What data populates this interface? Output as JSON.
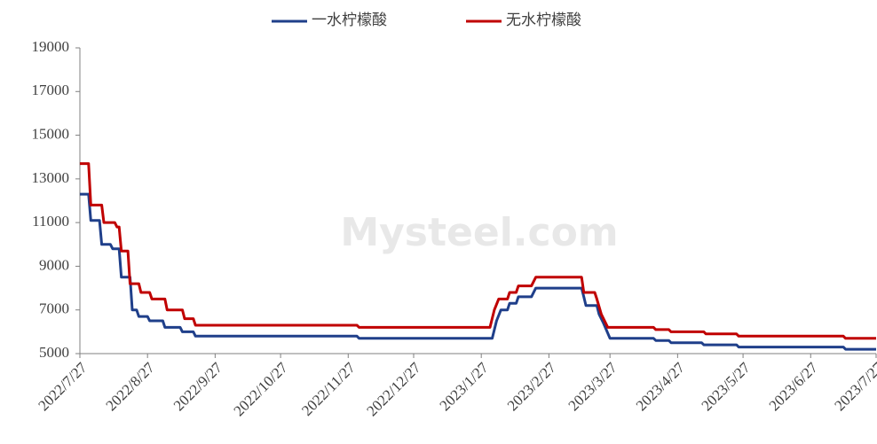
{
  "chart_data": {
    "type": "line",
    "watermark": "Mysteel.com",
    "xlim": [
      "2022/7/27",
      "2023/7/27"
    ],
    "xticks": [
      "2022/7/27",
      "2022/8/27",
      "2022/9/27",
      "2022/10/27",
      "2022/11/27",
      "2022/12/27",
      "2023/1/27",
      "2023/2/27",
      "2023/3/27",
      "2023/4/27",
      "2023/5/27",
      "2023/6/27",
      "2023/7/27"
    ],
    "ylim": [
      5000,
      19000
    ],
    "yticks": [
      5000,
      7000,
      9000,
      11000,
      13000,
      15000,
      17000,
      19000
    ],
    "grid": false,
    "legend": "top",
    "series": [
      {
        "name": "一水柠檬酸",
        "color": "#1f3f8a",
        "x": [
          "2022/7/27",
          "2022/7/31",
          "2022/8/1",
          "2022/8/5",
          "2022/8/6",
          "2022/8/10",
          "2022/8/11",
          "2022/8/14",
          "2022/8/15",
          "2022/8/19",
          "2022/8/20",
          "2022/8/22",
          "2022/8/23",
          "2022/8/27",
          "2022/8/28",
          "2022/9/3",
          "2022/9/4",
          "2022/9/11",
          "2022/9/12",
          "2022/9/17",
          "2022/9/18",
          "2022/12/1",
          "2022/12/2",
          "2023/2/1",
          "2023/2/3",
          "2023/2/5",
          "2023/2/8",
          "2023/2/9",
          "2023/2/12",
          "2023/2/13",
          "2023/2/19",
          "2023/2/21",
          "2023/3/14",
          "2023/3/15",
          "2023/3/16",
          "2023/3/21",
          "2023/3/22",
          "2023/3/24",
          "2023/3/27",
          "2023/4/16",
          "2023/4/17",
          "2023/4/23",
          "2023/4/24",
          "2023/5/8",
          "2023/5/9",
          "2023/5/24",
          "2023/5/25",
          "2023/7/12",
          "2023/7/13",
          "2023/7/27"
        ],
        "values": [
          12300,
          12300,
          11100,
          11100,
          10000,
          10000,
          9800,
          9800,
          8500,
          8500,
          7000,
          7000,
          6700,
          6700,
          6500,
          6500,
          6200,
          6200,
          6000,
          6000,
          5800,
          5800,
          5700,
          5700,
          6500,
          7000,
          7000,
          7300,
          7300,
          7600,
          7600,
          8000,
          8000,
          7600,
          7200,
          7200,
          6800,
          6400,
          5700,
          5700,
          5600,
          5600,
          5500,
          5500,
          5400,
          5400,
          5300,
          5300,
          5200,
          5200
        ]
      },
      {
        "name": "无水柠檬酸",
        "color": "#c00000",
        "x": [
          "2022/7/27",
          "2022/7/31",
          "2022/8/1",
          "2022/8/6",
          "2022/8/7",
          "2022/8/12",
          "2022/8/13",
          "2022/8/14",
          "2022/8/15",
          "2022/8/18",
          "2022/8/19",
          "2022/8/23",
          "2022/8/24",
          "2022/8/28",
          "2022/8/29",
          "2022/9/4",
          "2022/9/5",
          "2022/9/12",
          "2022/9/13",
          "2022/9/17",
          "2022/9/18",
          "2022/12/1",
          "2022/12/2",
          "2023/1/31",
          "2023/2/2",
          "2023/2/4",
          "2023/2/8",
          "2023/2/9",
          "2023/2/12",
          "2023/2/13",
          "2023/2/19",
          "2023/2/21",
          "2023/3/14",
          "2023/3/15",
          "2023/3/20",
          "2023/3/21",
          "2023/3/23",
          "2023/3/26",
          "2023/4/16",
          "2023/4/17",
          "2023/4/23",
          "2023/4/24",
          "2023/5/9",
          "2023/5/10",
          "2023/5/24",
          "2023/5/25",
          "2023/7/12",
          "2023/7/13",
          "2023/7/27"
        ],
        "values": [
          13700,
          13700,
          11800,
          11800,
          11000,
          11000,
          10800,
          10800,
          9700,
          9700,
          8200,
          8200,
          7800,
          7800,
          7500,
          7500,
          7000,
          7000,
          6600,
          6600,
          6300,
          6300,
          6200,
          6200,
          7000,
          7500,
          7500,
          7800,
          7800,
          8100,
          8100,
          8500,
          8500,
          7800,
          7800,
          7500,
          6800,
          6200,
          6200,
          6100,
          6100,
          6000,
          6000,
          5900,
          5900,
          5800,
          5800,
          5700,
          5700
        ]
      }
    ]
  }
}
